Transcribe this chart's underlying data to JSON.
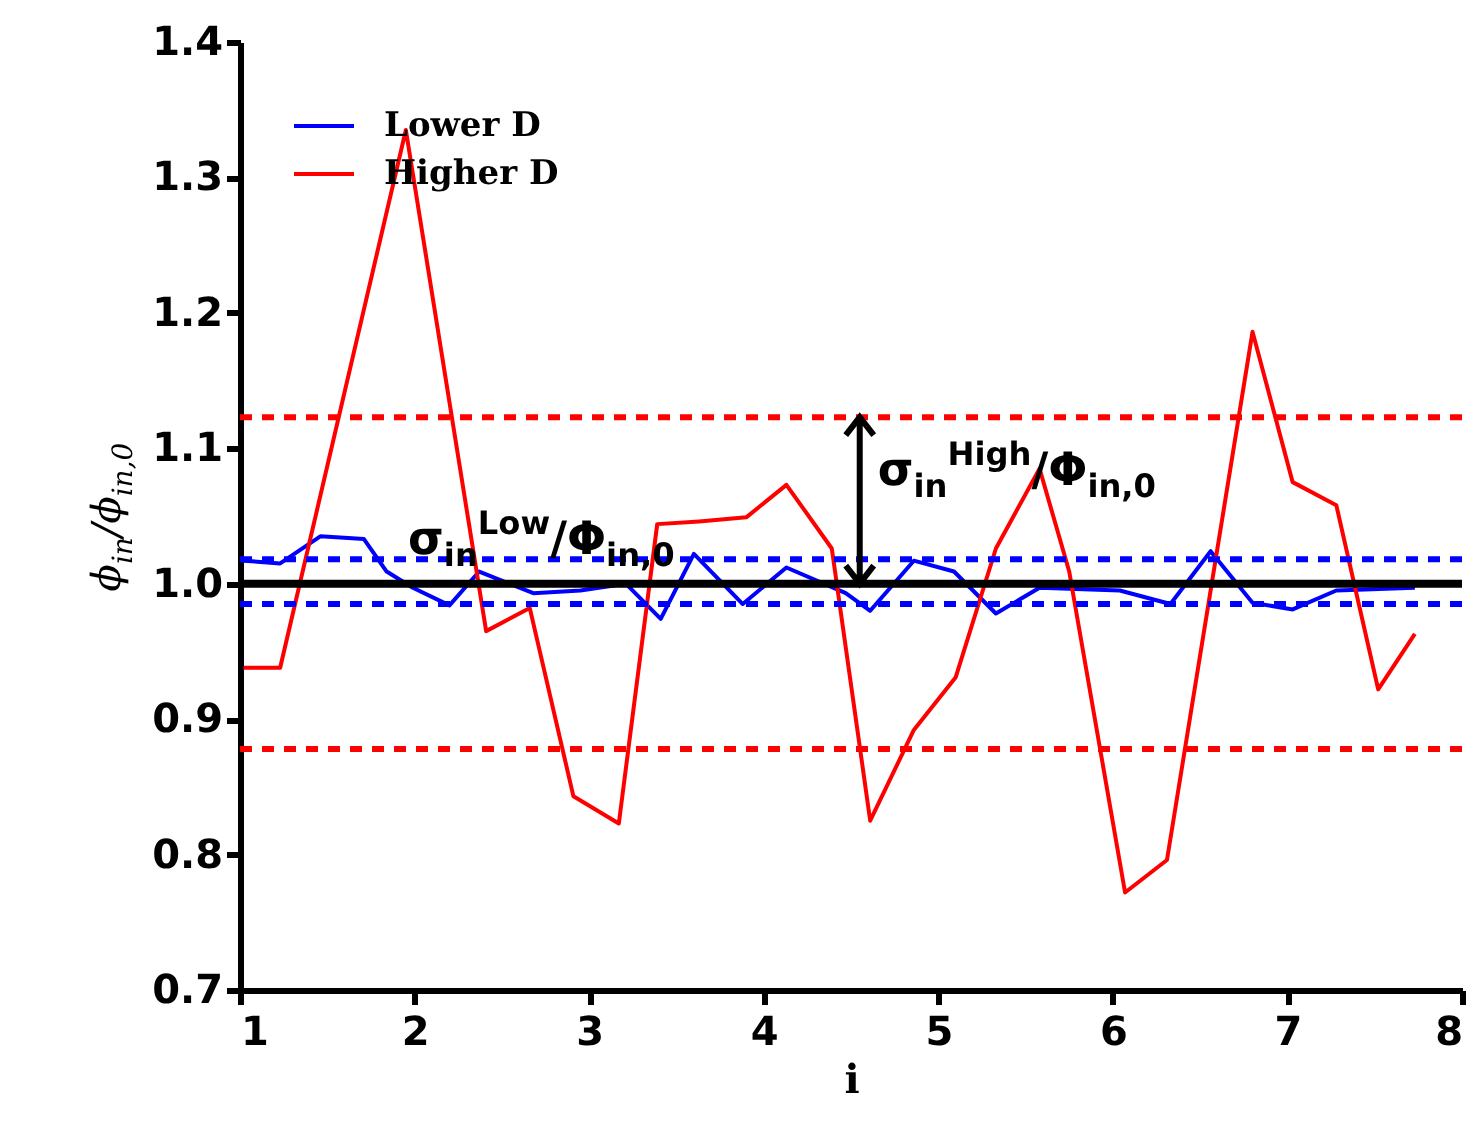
{
  "chart_data": {
    "type": "line",
    "xlabel": "i",
    "ylabel": "ϕ$_{in}$/ϕ$_{in,0}$",
    "xlim": [
      1,
      8
    ],
    "xticks": [
      1,
      2,
      3,
      4,
      5,
      6,
      7,
      8
    ],
    "ylim": [
      0.7,
      1.4
    ],
    "yticks": [
      0.7,
      0.8,
      0.9,
      {
        "value": 1,
        "label": "1.0"
      },
      1.1,
      1.2,
      1.3,
      1.4
    ],
    "legend": "top left",
    "grid": false,
    "line_style": "solid",
    "series": [
      {
        "name": "Lower D",
        "color": "#0000ff",
        "x": [
          1.02,
          1.23,
          1.46,
          1.71,
          1.84,
          1.99,
          2.2,
          2.37,
          2.68,
          2.95,
          3.21,
          3.41,
          3.6,
          3.88,
          4.13,
          4.47,
          4.61,
          4.86,
          5.09,
          5.33,
          5.58,
          6.04,
          6.33,
          6.56,
          6.8,
          7.03,
          7.28,
          7.73
        ],
        "values": [
          1.017,
          1.015,
          1.035,
          1.033,
          1.009,
          0.997,
          0.984,
          1.009,
          0.993,
          0.995,
          1.0,
          0.974,
          1.022,
          0.985,
          1.012,
          0.993,
          0.98,
          1.017,
          1.009,
          0.978,
          0.997,
          0.995,
          0.985,
          1.024,
          0.986,
          0.981,
          0.995,
          0.997
        ]
      },
      {
        "name": "Higher D",
        "color": "#ff0000",
        "x": [
          1.02,
          1.23,
          1.95,
          2.41,
          2.66,
          2.91,
          3.17,
          3.39,
          3.63,
          3.9,
          4.13,
          4.39,
          4.61,
          4.86,
          5.1,
          5.33,
          5.58,
          5.75,
          6.07,
          6.31,
          6.8,
          7.03,
          7.28,
          7.52,
          7.73
        ],
        "values": [
          0.938,
          0.938,
          1.335,
          0.965,
          0.982,
          0.843,
          0.823,
          1.044,
          1.046,
          1.049,
          1.073,
          1.026,
          0.825,
          0.892,
          0.931,
          1.026,
          1.085,
          1.009,
          0.772,
          0.796,
          1.186,
          1.075,
          1.058,
          0.922,
          0.963
        ]
      }
    ],
    "ref_lines": [
      {
        "axis": "y",
        "value": 1.0,
        "color": "#000000",
        "line_style": "solid"
      },
      {
        "axis": "y",
        "value": 1.123,
        "color": "#ff0000",
        "line_style": "dashed"
      },
      {
        "axis": "y",
        "value": 0.878,
        "color": "#ff0000",
        "line_style": "dashed"
      },
      {
        "axis": "y",
        "value": 1.018,
        "color": "#0000ff",
        "line_style": "dashed"
      },
      {
        "axis": "y",
        "value": 0.985,
        "color": "#0000ff",
        "line_style": "dashed"
      }
    ],
    "annotations": [
      "σ$_{in}$$^{Low}$/Φ$_{in,0}$",
      {
        "text": "σ$_{in}$$^{High}$/Φ$_{in,0}$",
        "x": 4.55,
        "y": 1.123
      }
    ]
  }
}
